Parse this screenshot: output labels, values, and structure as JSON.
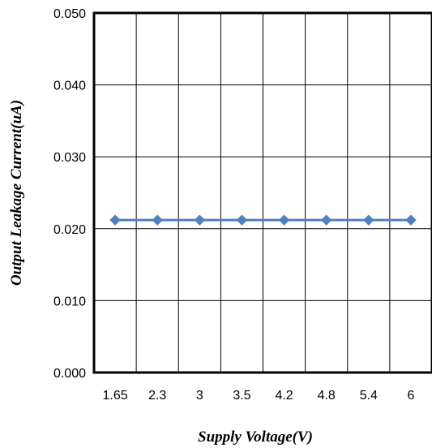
{
  "chart_data": {
    "type": "line",
    "title": "",
    "xlabel": "Supply Voltage(V)",
    "ylabel": "Output Leakage Current(uA)",
    "categories": [
      "1.65",
      "2.3",
      "3",
      "3.5",
      "4.2",
      "4.8",
      "5.4",
      "6"
    ],
    "series": [
      {
        "values": [
          0.0212,
          0.0212,
          0.0212,
          0.0212,
          0.0212,
          0.0212,
          0.0212,
          0.0212
        ],
        "color": "#4f81bd",
        "marker": "diamond"
      }
    ],
    "ylim": [
      0,
      0.05
    ],
    "yticks": [
      "0.000",
      "0.010",
      "0.020",
      "0.030",
      "0.040",
      "0.050"
    ],
    "grid": true
  }
}
